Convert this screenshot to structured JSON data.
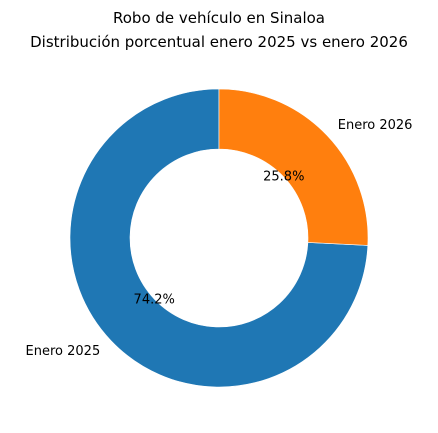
{
  "chart_data": {
    "type": "pie",
    "donut": true,
    "title": "Robo de vehículo en Sinaloa",
    "subtitle": "Distribución porcentual enero 2025 vs enero 2026",
    "start_angle_deg": 90,
    "direction": "counterclockwise",
    "slices": [
      {
        "label": "Enero 2025",
        "value": 74.2,
        "pct_label": "74.2%",
        "color": "#1f77b4"
      },
      {
        "label": "Enero 2026",
        "value": 25.8,
        "pct_label": "25.8%",
        "color": "#ff7f0e"
      }
    ]
  }
}
